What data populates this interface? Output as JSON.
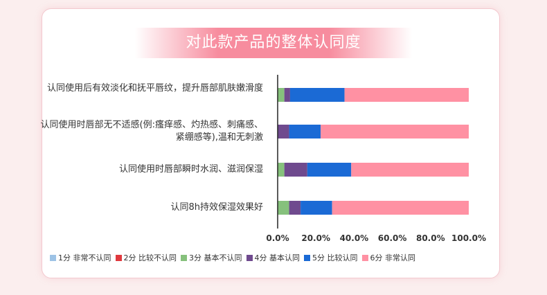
{
  "title": "对此款产品的整体认同度",
  "chart_data": {
    "type": "bar",
    "orientation": "horizontal",
    "stacked": true,
    "categories": [
      "认同使用后有效淡化和抚平唇纹，提升唇部肌肤嫩滑度",
      "认同使用时唇部无不适感(例:瘙痒感、灼热感、刺痛感、紧绷感等),温和无刺激",
      "认同使用时唇部瞬时水润、滋润保湿",
      "认同8h持效保湿效果好"
    ],
    "series": [
      {
        "name": "1分 非常不认同",
        "color": "#9dc3e6",
        "values": [
          0,
          0,
          0,
          0
        ]
      },
      {
        "name": "2分 比较不认同",
        "color": "#e0393e",
        "values": [
          0,
          0,
          0,
          0
        ]
      },
      {
        "name": "3分 基本不认同",
        "color": "#86c17c",
        "values": [
          3.5,
          0,
          3.5,
          6
        ]
      },
      {
        "name": "4分 基本认同",
        "color": "#6f4a8e",
        "values": [
          3,
          6,
          12,
          6
        ]
      },
      {
        "name": "5分 比较认同",
        "color": "#1b6ad5",
        "values": [
          28.5,
          16.5,
          23,
          16.5
        ]
      },
      {
        "name": "6分 非常认同",
        "color": "#ff91a3",
        "values": [
          65,
          77.5,
          61.5,
          71.5
        ]
      }
    ],
    "x_ticks": [
      "0.0%",
      "20.0%",
      "40.0%",
      "60.0%",
      "80.0%",
      "100.0%"
    ],
    "xlim": [
      0,
      100
    ],
    "legend_position": "bottom",
    "grid": false
  }
}
